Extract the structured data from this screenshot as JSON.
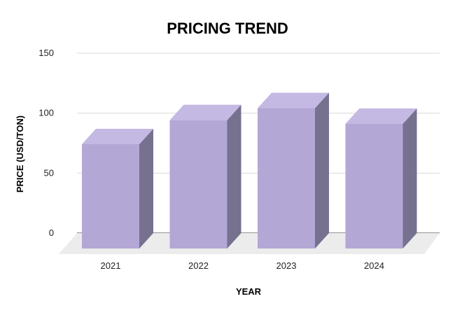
{
  "chart_data": {
    "type": "bar",
    "title": "PRICING TREND",
    "xlabel": "YEAR",
    "ylabel": "PRICE (USD/TON)",
    "categories": [
      "2021",
      "2022",
      "2023",
      "2024"
    ],
    "values": [
      87,
      107,
      117,
      104
    ],
    "ylim": [
      0,
      150
    ],
    "yticks": [
      "0",
      "50",
      "100",
      "150"
    ],
    "grid": true,
    "style": "3d",
    "colors": {
      "bar_front": "#b3a7d6",
      "bar_top": "#c4b9e2",
      "bar_side": "#75718f",
      "grid": "#d9d9d9",
      "floor": "#ececec",
      "baseline": "#555555"
    }
  }
}
